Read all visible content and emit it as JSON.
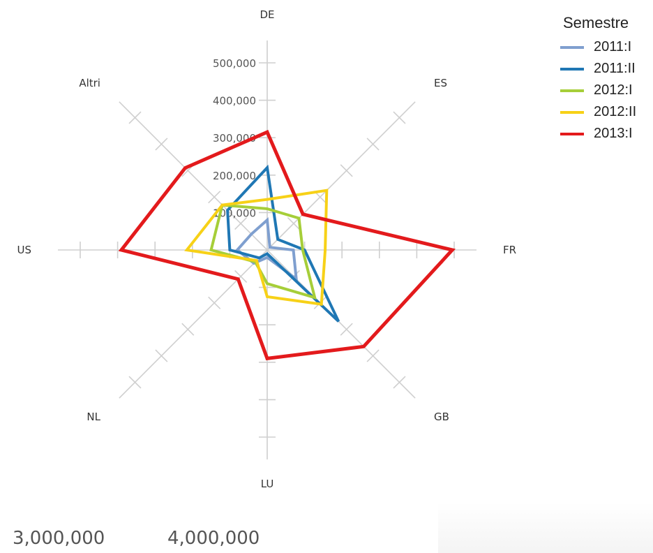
{
  "chart_data": {
    "type": "radar",
    "categories": [
      "DE",
      "ES",
      "FR",
      "GB",
      "LU",
      "NL",
      "US",
      "Altri"
    ],
    "radial_ticks": [
      100000,
      200000,
      300000,
      400000,
      500000
    ],
    "radial_tick_labels": [
      "100,000",
      "200,000",
      "300,000",
      "400,000",
      "500,000"
    ],
    "rmax": 500000,
    "legend_title": "Semestre",
    "series": [
      {
        "name": "2011:I",
        "color": "#7f9fcf",
        "values": [
          80000,
          10000,
          70000,
          110000,
          20000,
          50000,
          80000,
          60000
        ]
      },
      {
        "name": "2011:II",
        "color": "#1f77b4",
        "values": [
          220000,
          40000,
          100000,
          270000,
          10000,
          30000,
          100000,
          150000
        ]
      },
      {
        "name": "2012:I",
        "color": "#a6ce39",
        "values": [
          110000,
          120000,
          95000,
          180000,
          90000,
          45000,
          150000,
          170000
        ]
      },
      {
        "name": "2012:II",
        "color": "#f7d117",
        "values": [
          135000,
          225000,
          155000,
          205000,
          125000,
          40000,
          215000,
          170000
        ]
      },
      {
        "name": "2013:I",
        "color": "#e31a1c",
        "values": [
          315000,
          135000,
          495000,
          365000,
          290000,
          110000,
          390000,
          310000
        ]
      }
    ],
    "legend_position": "top-right",
    "bottom_axis_labels": [
      "3,000,000",
      "4,000,000"
    ]
  }
}
